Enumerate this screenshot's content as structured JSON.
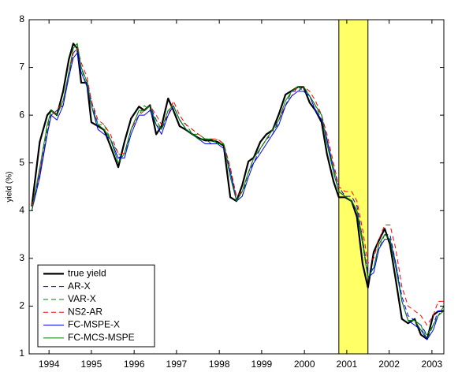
{
  "chart_data": {
    "type": "line",
    "ylabel": "yield (%)",
    "xlim": [
      1994.05,
      2003.45
    ],
    "ylim": [
      1,
      8
    ],
    "yticks": [
      1,
      2,
      3,
      4,
      5,
      6,
      7,
      8
    ],
    "xticks": [
      {
        "value": 1994.5,
        "label": "1994"
      },
      {
        "value": 1995.46,
        "label": "1995"
      },
      {
        "value": 1996.43,
        "label": "1996"
      },
      {
        "value": 1997.39,
        "label": "1997"
      },
      {
        "value": 1998.36,
        "label": "1998"
      },
      {
        "value": 1999.32,
        "label": "1999"
      },
      {
        "value": 2000.29,
        "label": "2000"
      },
      {
        "value": 2001.25,
        "label": "2001"
      },
      {
        "value": 2002.21,
        "label": "2002"
      },
      {
        "value": 2003.18,
        "label": "2003"
      }
    ],
    "shaded_region": [
      2001.07,
      2001.73
    ],
    "shaded_color": "#ffff66",
    "legend": "lower left",
    "x": [
      1994.11,
      1994.29,
      1994.46,
      1994.55,
      1994.68,
      1994.82,
      1994.95,
      1995.05,
      1995.14,
      1995.23,
      1995.36,
      1995.46,
      1995.61,
      1995.75,
      1995.89,
      1996.07,
      1996.21,
      1996.36,
      1996.54,
      1996.66,
      1996.79,
      1996.93,
      1997.05,
      1997.2,
      1997.32,
      1997.46,
      1997.61,
      1997.75,
      1997.89,
      1998.04,
      1998.18,
      1998.32,
      1998.46,
      1998.61,
      1998.75,
      1998.88,
      1999.02,
      1999.14,
      1999.29,
      1999.43,
      1999.57,
      1999.71,
      1999.86,
      2000.0,
      2000.14,
      2000.27,
      2000.41,
      2000.54,
      2000.68,
      2000.8,
      2000.95,
      2001.07,
      2001.21,
      2001.36,
      2001.48,
      2001.61,
      2001.73,
      2001.86,
      2001.98,
      2002.11,
      2002.23,
      2002.36,
      2002.5,
      2002.64,
      2002.79,
      2002.93,
      2003.07,
      2003.21,
      2003.32,
      2003.45
    ],
    "series": [
      {
        "name": "true yield",
        "color": "#000000",
        "style": "solid",
        "width": 2.2,
        "values": [
          4.09,
          5.44,
          6.0,
          6.1,
          6.0,
          6.5,
          7.17,
          7.5,
          7.4,
          6.68,
          6.68,
          5.85,
          5.77,
          5.69,
          5.36,
          4.91,
          5.44,
          5.93,
          6.18,
          6.1,
          6.21,
          5.6,
          5.77,
          6.35,
          6.1,
          5.77,
          5.69,
          5.6,
          5.52,
          5.47,
          5.47,
          5.44,
          5.36,
          4.28,
          4.2,
          4.53,
          5.03,
          5.11,
          5.44,
          5.6,
          5.69,
          6.02,
          6.43,
          6.51,
          6.59,
          6.59,
          6.26,
          6.1,
          5.85,
          5.19,
          4.61,
          4.28,
          4.28,
          4.2,
          3.87,
          2.88,
          2.39,
          3.13,
          3.38,
          3.62,
          3.29,
          2.55,
          1.73,
          1.64,
          1.73,
          1.4,
          1.31,
          1.81,
          1.89,
          1.9
        ]
      },
      {
        "name": "AR-X",
        "color": "#0000ff",
        "style": "dashed",
        "width": 1,
        "values": [
          4.0,
          4.8,
          5.7,
          6.0,
          6.1,
          6.2,
          6.9,
          7.3,
          7.4,
          7.0,
          6.7,
          6.3,
          5.8,
          5.7,
          5.5,
          5.1,
          5.2,
          5.7,
          6.1,
          6.1,
          6.2,
          5.9,
          5.7,
          6.0,
          6.2,
          5.9,
          5.7,
          5.6,
          5.5,
          5.5,
          5.5,
          5.4,
          5.4,
          4.8,
          4.3,
          4.4,
          4.8,
          5.0,
          5.3,
          5.5,
          5.6,
          5.9,
          6.2,
          6.5,
          6.5,
          6.6,
          6.4,
          6.2,
          6.0,
          5.5,
          4.9,
          4.5,
          4.3,
          4.3,
          4.1,
          3.4,
          2.7,
          2.8,
          3.3,
          3.5,
          3.5,
          2.9,
          2.2,
          1.8,
          1.7,
          1.6,
          1.4,
          1.6,
          1.9,
          1.9
        ]
      },
      {
        "name": "VAR-X",
        "color": "#008000",
        "style": "dashed",
        "width": 1,
        "values": [
          4.0,
          4.7,
          5.7,
          6.1,
          6.0,
          6.3,
          6.8,
          7.4,
          7.5,
          7.0,
          6.6,
          6.2,
          5.8,
          5.8,
          5.5,
          5.2,
          5.1,
          5.7,
          6.0,
          6.2,
          6.1,
          5.9,
          5.7,
          6.1,
          6.2,
          5.9,
          5.8,
          5.6,
          5.6,
          5.5,
          5.4,
          5.5,
          5.4,
          4.9,
          4.2,
          4.3,
          4.8,
          5.1,
          5.3,
          5.5,
          5.7,
          5.8,
          6.2,
          6.5,
          6.6,
          6.5,
          6.4,
          6.2,
          5.9,
          5.5,
          4.9,
          4.4,
          4.3,
          4.2,
          4.0,
          3.4,
          2.6,
          2.8,
          3.2,
          3.5,
          3.4,
          2.9,
          2.1,
          1.7,
          1.7,
          1.6,
          1.3,
          1.6,
          1.8,
          2.0
        ]
      },
      {
        "name": "NS2-AR",
        "color": "#ff0000",
        "style": "dashed",
        "width": 1,
        "values": [
          4.1,
          4.8,
          5.6,
          6.0,
          6.1,
          6.3,
          6.8,
          7.3,
          7.4,
          7.1,
          6.8,
          6.3,
          5.9,
          5.8,
          5.6,
          5.2,
          5.2,
          5.7,
          6.0,
          6.1,
          6.2,
          6.0,
          5.8,
          6.0,
          6.3,
          6.0,
          5.8,
          5.7,
          5.6,
          5.5,
          5.5,
          5.5,
          5.4,
          4.9,
          4.3,
          4.4,
          4.8,
          5.1,
          5.3,
          5.5,
          5.7,
          5.9,
          6.2,
          6.4,
          6.6,
          6.6,
          6.5,
          6.3,
          6.0,
          5.6,
          5.0,
          4.5,
          4.4,
          4.4,
          4.2,
          3.6,
          2.9,
          3.0,
          3.4,
          3.7,
          3.7,
          3.2,
          2.4,
          2.0,
          1.9,
          1.8,
          1.6,
          1.8,
          2.1,
          2.1
        ]
      },
      {
        "name": "FC-MSPE-X",
        "color": "#0000ff",
        "style": "solid",
        "width": 1,
        "values": [
          4.0,
          4.7,
          5.6,
          6.0,
          5.9,
          6.2,
          6.8,
          7.2,
          7.3,
          6.9,
          6.6,
          6.2,
          5.7,
          5.6,
          5.5,
          5.1,
          5.1,
          5.6,
          6.0,
          6.0,
          6.1,
          5.8,
          5.6,
          6.0,
          6.2,
          5.9,
          5.7,
          5.6,
          5.5,
          5.4,
          5.4,
          5.4,
          5.3,
          4.8,
          4.2,
          4.3,
          4.7,
          5.0,
          5.2,
          5.4,
          5.6,
          5.8,
          6.2,
          6.4,
          6.5,
          6.5,
          6.4,
          6.1,
          5.9,
          5.5,
          4.8,
          4.4,
          4.3,
          4.2,
          4.0,
          3.3,
          2.6,
          2.7,
          3.2,
          3.4,
          3.4,
          2.9,
          2.1,
          1.7,
          1.6,
          1.5,
          1.3,
          1.5,
          1.8,
          1.9
        ]
      },
      {
        "name": "FC-MCS-MSPE",
        "color": "#008000",
        "style": "solid",
        "width": 1,
        "values": [
          4.0,
          4.9,
          5.8,
          6.1,
          6.0,
          6.3,
          6.9,
          7.4,
          7.5,
          7.0,
          6.7,
          6.2,
          5.8,
          5.7,
          5.5,
          5.0,
          5.2,
          5.7,
          6.1,
          6.1,
          6.2,
          5.8,
          5.7,
          6.1,
          6.2,
          5.9,
          5.7,
          5.6,
          5.5,
          5.5,
          5.5,
          5.4,
          5.4,
          4.7,
          4.2,
          4.4,
          4.8,
          5.1,
          5.3,
          5.5,
          5.7,
          5.9,
          6.3,
          6.5,
          6.6,
          6.6,
          6.4,
          6.2,
          6.0,
          5.4,
          4.8,
          4.4,
          4.3,
          4.2,
          4.0,
          3.3,
          2.6,
          2.8,
          3.3,
          3.5,
          3.4,
          2.8,
          2.1,
          1.7,
          1.7,
          1.5,
          1.4,
          1.6,
          1.8,
          1.9
        ]
      }
    ]
  }
}
